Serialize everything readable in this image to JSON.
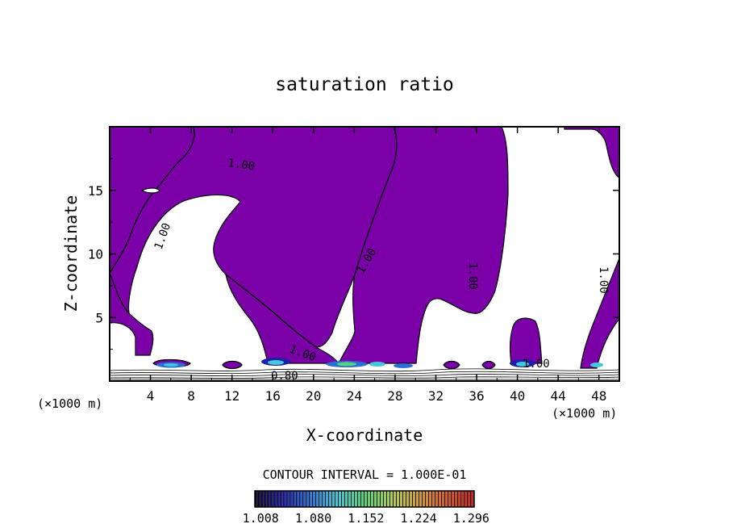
{
  "chart_data": {
    "type": "contour",
    "title": "saturation ratio",
    "xlabel": "X-coordinate",
    "ylabel": "Z-coordinate",
    "x_unit_label": "(×1000 m)",
    "xlim": [
      0,
      50
    ],
    "ylim": [
      0,
      20
    ],
    "x_ticks": [
      "4",
      "8",
      "12",
      "16",
      "20",
      "24",
      "28",
      "32",
      "36",
      "40",
      "44",
      "48"
    ],
    "y_ticks": [
      "5",
      "10",
      "15"
    ],
    "contour_labels": [
      "1.00",
      "1.00",
      "1.00",
      "1.00",
      "1.00",
      "1.00",
      "1.00",
      "0.80"
    ],
    "contour_interval": "CONTOUR INTERVAL =  1.000E-01",
    "colorbar": {
      "ticks": [
        "1.008",
        "1.080",
        "1.152",
        "1.224",
        "1.296"
      ],
      "range": [
        1.0,
        1.3
      ]
    },
    "fill_color": "#7b00a8",
    "colormap": [
      "#0a0628",
      "#1f1ea8",
      "#2a6fd8",
      "#42c8d8",
      "#52d678",
      "#b0d050",
      "#d6a030",
      "#d85a25",
      "#c52018"
    ],
    "supersaturated_regions_x_ranges": [
      [
        0,
        4.5
      ],
      [
        3,
        20
      ],
      [
        17,
        21
      ],
      [
        21,
        31
      ],
      [
        31,
        39
      ],
      [
        39,
        43
      ],
      [
        43,
        50
      ]
    ]
  }
}
